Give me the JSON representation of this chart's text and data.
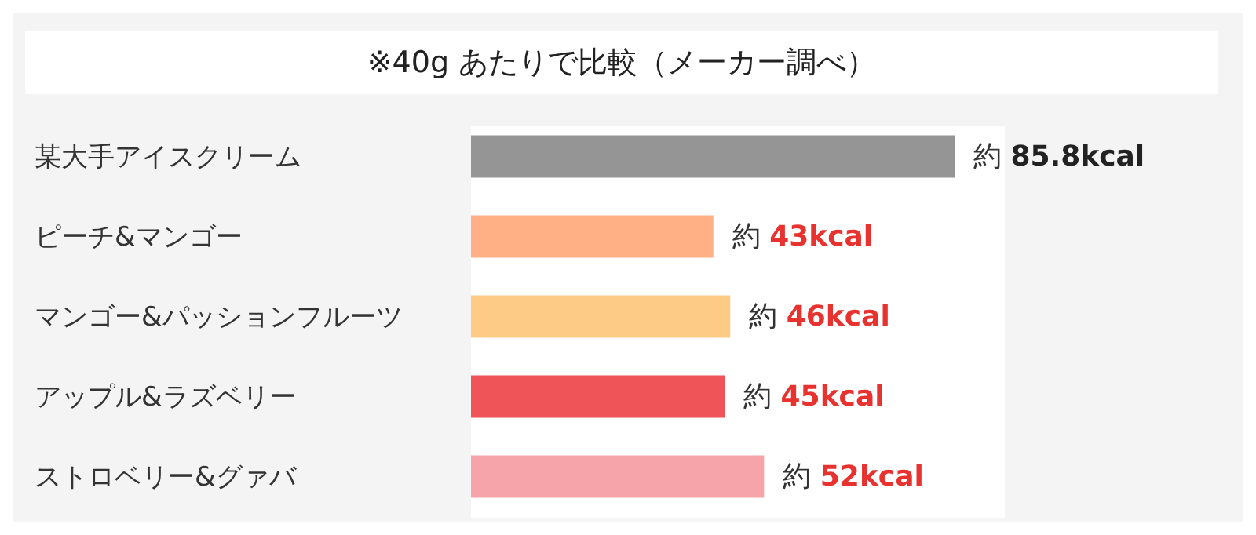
{
  "chart_data": {
    "type": "bar",
    "orientation": "horizontal",
    "title": "※40g あたりで比較（メーカー調べ）",
    "categories": [
      "某大手アイスクリーム",
      "ピーチ&マンゴー",
      "マンゴー&パッションフルーツ",
      "アップル&ラズベリー",
      "ストロベリー&グァバ"
    ],
    "values": [
      85.8,
      43,
      46,
      45,
      52
    ],
    "colors": [
      "#959595",
      "#ffb085",
      "#fecb87",
      "#ee5458",
      "#f7a3aa"
    ],
    "value_labels": [
      "約 85.8kcal",
      "約 43kcal",
      "約 46kcal",
      "約 45kcal",
      "約 52kcal"
    ]
  }
}
